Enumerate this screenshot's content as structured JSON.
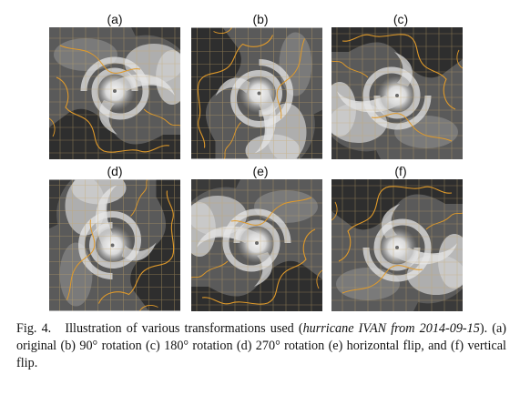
{
  "figure": {
    "panels": [
      {
        "label": "(a)",
        "transform": "original"
      },
      {
        "label": "(b)",
        "transform": "90° rotation"
      },
      {
        "label": "(c)",
        "transform": "180° rotation"
      },
      {
        "label": "(d)",
        "transform": "270° rotation"
      },
      {
        "label": "(e)",
        "transform": "horizontal flip"
      },
      {
        "label": "(f)",
        "transform": "vertical flip"
      }
    ]
  },
  "caption": {
    "lead": "Fig. 4.",
    "text_before": "Illustration of various transformations used (",
    "italic": "hurricane IVAN from 2014-09-15",
    "text_after": "). (a) original (b) 90° rotation (c) 180° rotation (d) 270° rotation (e) horizontal flip, and (f) vertical flip."
  }
}
